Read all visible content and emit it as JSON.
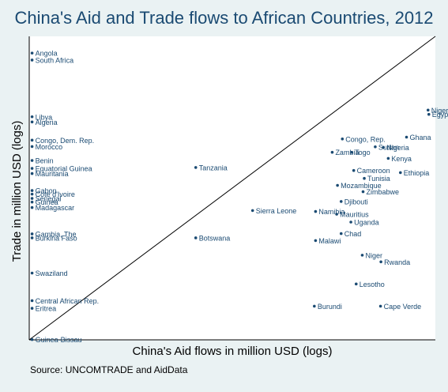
{
  "chart_data": {
    "type": "scatter",
    "title": "China's Aid and Trade flows to African Countries, 2012",
    "xlabel": "China's Aid flows in million USD (logs)",
    "ylabel": "Trade in million USD (logs)",
    "source": "Source:  UNCOMTRADE and AidData",
    "xlim": [
      0,
      100
    ],
    "ylim": [
      0,
      100
    ],
    "grid": false,
    "reference_line": "y = x",
    "point_color": "#1a4a72",
    "points": [
      {
        "label": "Angola",
        "x": 0.7,
        "y": 94.5
      },
      {
        "label": "South Africa",
        "x": 0.7,
        "y": 92.2
      },
      {
        "label": "Libya",
        "x": 0.7,
        "y": 73.5
      },
      {
        "label": "Algeria",
        "x": 0.7,
        "y": 71.8
      },
      {
        "label": "Congo, Dem. Rep.",
        "x": 0.7,
        "y": 65.8
      },
      {
        "label": "Morocco",
        "x": 0.7,
        "y": 63.7
      },
      {
        "label": "Benin",
        "x": 0.7,
        "y": 59.1
      },
      {
        "label": "Equatorial Guinea",
        "x": 0.7,
        "y": 56.5
      },
      {
        "label": "Mauritania",
        "x": 0.7,
        "y": 54.8
      },
      {
        "label": "Gabon",
        "x": 0.7,
        "y": 49.2
      },
      {
        "label": "Cote d'Ivoire",
        "x": 0.7,
        "y": 48.0
      },
      {
        "label": "Senegal",
        "x": 0.7,
        "y": 46.6
      },
      {
        "label": "Guinea",
        "x": 0.7,
        "y": 45.4
      },
      {
        "label": "Madagascar",
        "x": 0.7,
        "y": 43.6
      },
      {
        "label": "Gambia, The",
        "x": 0.7,
        "y": 34.9
      },
      {
        "label": "Burkina Faso",
        "x": 0.7,
        "y": 33.6
      },
      {
        "label": "Swaziland",
        "x": 0.7,
        "y": 22.0
      },
      {
        "label": "Central African Rep.",
        "x": 0.7,
        "y": 12.9
      },
      {
        "label": "Eritrea",
        "x": 0.7,
        "y": 10.4
      },
      {
        "label": "Guinea-Bissau",
        "x": 0.7,
        "y": 0.1
      },
      {
        "label": "Tanzania",
        "x": 41.0,
        "y": 56.8
      },
      {
        "label": "Botswana",
        "x": 41.0,
        "y": 33.6
      },
      {
        "label": "Sierra Leone",
        "x": 55.0,
        "y": 42.6
      },
      {
        "label": "Niger",
        "x": 98.2,
        "y": 75.7
      },
      {
        "label": "Egypt",
        "x": 98.4,
        "y": 74.3
      },
      {
        "label": "Ghana",
        "x": 92.9,
        "y": 66.8
      },
      {
        "label": "Congo, Rep.",
        "x": 77.1,
        "y": 66.2
      },
      {
        "label": "Nigeria",
        "x": 87.2,
        "y": 63.4
      },
      {
        "label": "Sudan",
        "x": 85.2,
        "y": 63.6
      },
      {
        "label": "Zambia",
        "x": 74.6,
        "y": 61.8
      },
      {
        "label": "Togo",
        "x": 79.4,
        "y": 61.8
      },
      {
        "label": "Kenya",
        "x": 88.4,
        "y": 59.8
      },
      {
        "label": "Cameroon",
        "x": 79.9,
        "y": 55.8
      },
      {
        "label": "Ethiopia",
        "x": 91.4,
        "y": 55.1
      },
      {
        "label": "Tunisia",
        "x": 82.5,
        "y": 53.2
      },
      {
        "label": "Mozambique",
        "x": 75.9,
        "y": 50.9
      },
      {
        "label": "Zimbabwe",
        "x": 82.2,
        "y": 48.8
      },
      {
        "label": "Djibouti",
        "x": 76.8,
        "y": 45.6
      },
      {
        "label": "Namibia",
        "x": 70.5,
        "y": 42.3
      },
      {
        "label": "Mauritius",
        "x": 75.7,
        "y": 41.4
      },
      {
        "label": "Uganda",
        "x": 79.2,
        "y": 38.8
      },
      {
        "label": "Chad",
        "x": 76.8,
        "y": 35.0
      },
      {
        "label": "Malawi",
        "x": 70.5,
        "y": 32.7
      },
      {
        "label": "Niger",
        "x": 82.0,
        "y": 27.9
      },
      {
        "label": "Rwanda",
        "x": 86.6,
        "y": 25.7
      },
      {
        "label": "Lesotho",
        "x": 80.5,
        "y": 18.4
      },
      {
        "label": "Burundi",
        "x": 70.2,
        "y": 11.1
      },
      {
        "label": "Cape Verde",
        "x": 86.5,
        "y": 11.1
      }
    ]
  }
}
